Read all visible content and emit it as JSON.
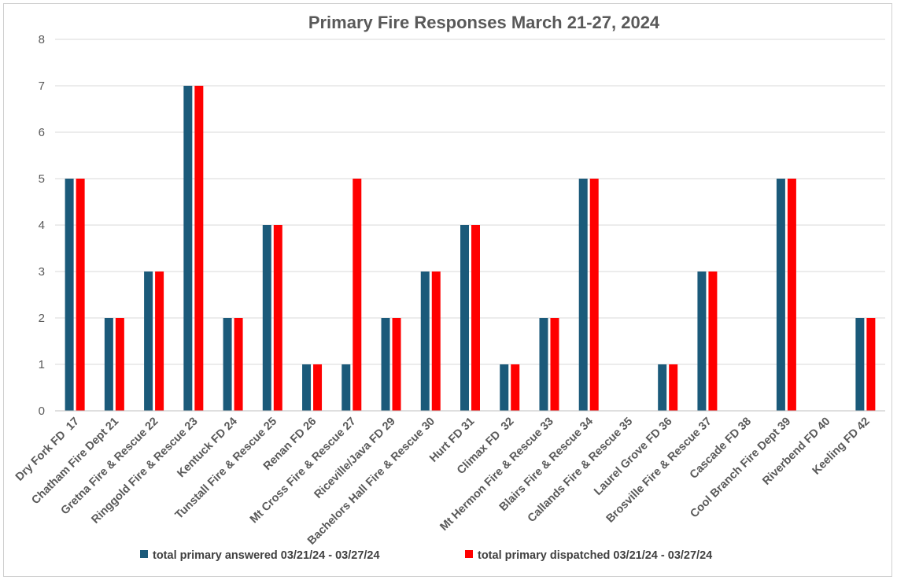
{
  "chart_data": {
    "type": "bar",
    "title": "Primary Fire Responses March 21-27, 2024",
    "xlabel": "",
    "ylabel": "",
    "ylim": [
      0,
      8
    ],
    "yticks": [
      0,
      1,
      2,
      3,
      4,
      5,
      6,
      7,
      8
    ],
    "grid": true,
    "legend_position": "bottom",
    "categories": [
      "Dry Fork FD  17",
      "Chatham Fire Dept 21",
      "Gretna Fire & Rescue 22",
      "Ringgold Fire & Rescue 23",
      "Kentuck FD 24",
      "Tunstall Fire & Rescue 25",
      "Renan FD 26",
      "Mt Cross Fire & Rescue 27",
      "Riceville/Java FD 29",
      "Bachelors Hall Fire & Rescue 30",
      "Hurt FD 31",
      "Climax FD  32",
      "Mt Hermon Fire & Rescue 33",
      "Blairs Fire & Rescue 34",
      "Callands Fire & Rescue 35",
      "Laurel Grove FD 36",
      "Brosville Fire & Rescue 37",
      "Cascade FD 38",
      "Cool Branch Fire Dept 39",
      "Riverbend FD 40",
      "Keeling FD 42"
    ],
    "series": [
      {
        "name": "total primary answered 03/21/24 - 03/27/24",
        "color": "#1b5a7a",
        "values": [
          5,
          2,
          3,
          7,
          2,
          4,
          1,
          1,
          2,
          3,
          4,
          1,
          2,
          5,
          0,
          1,
          3,
          0,
          5,
          0,
          2
        ]
      },
      {
        "name": "total primary dispatched 03/21/24 - 03/27/24",
        "color": "#ff0000",
        "values": [
          5,
          2,
          3,
          7,
          2,
          4,
          1,
          5,
          2,
          3,
          4,
          1,
          2,
          5,
          0,
          1,
          3,
          0,
          5,
          0,
          2
        ]
      }
    ]
  }
}
